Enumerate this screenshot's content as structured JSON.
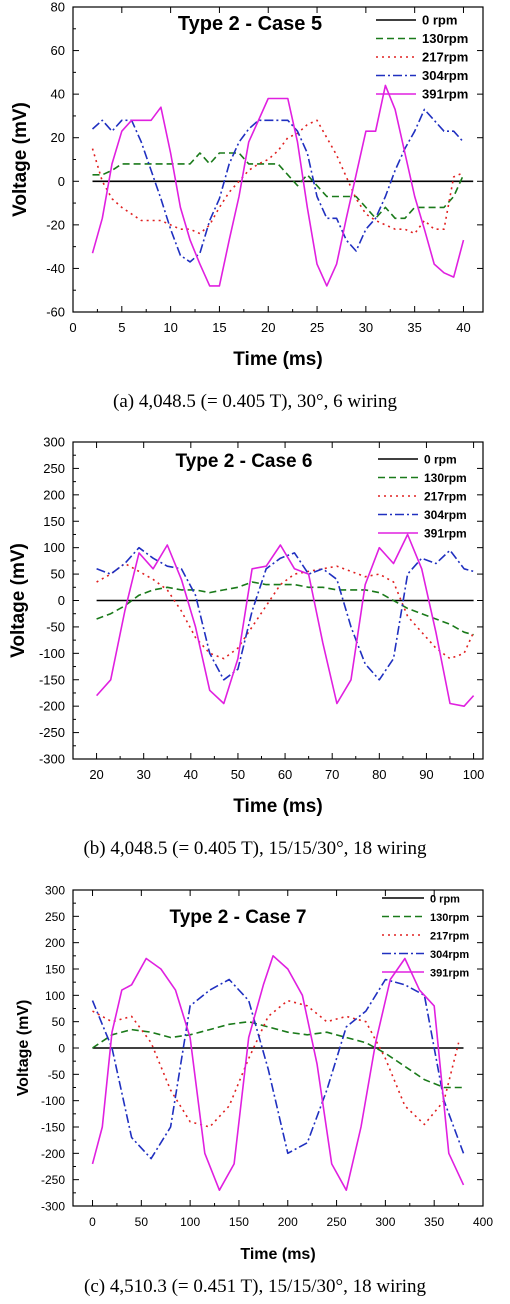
{
  "figures": [
    {
      "caption": "(a) 4,048.5 (= 0.405 T), 30°, 6 wiring"
    },
    {
      "caption": "(b) 4,048.5 (= 0.405 T), 15/15/30°, 18 wiring"
    },
    {
      "caption": "(c) 4,510.3 (= 0.451 T), 15/15/30°, 18 wiring"
    }
  ],
  "chart_data": [
    {
      "type": "line",
      "title": "Type 2 - Case 5",
      "xlabel": "Time (ms)",
      "ylabel": "Voltage (mV)",
      "xlim": [
        0,
        42
      ],
      "ylim": [
        -60,
        80
      ],
      "xticks": [
        0,
        5,
        10,
        15,
        20,
        25,
        30,
        35,
        40
      ],
      "yticks": [
        -60,
        -40,
        -20,
        0,
        20,
        40,
        60,
        80
      ],
      "legend_position": "top-right",
      "series": [
        {
          "name": "0 rpm",
          "color": "#000000",
          "style": "solid",
          "x": [
            2,
            41
          ],
          "y": [
            0,
            0
          ]
        },
        {
          "name": "130rpm",
          "color": "#1a7a1a",
          "style": "dash",
          "x": [
            2,
            3,
            4,
            5,
            6,
            7,
            8,
            9,
            10,
            11,
            12,
            13,
            14,
            15,
            16,
            17,
            18,
            19,
            20,
            21,
            22,
            23,
            24,
            25,
            26,
            27,
            28,
            29,
            30,
            31,
            32,
            33,
            34,
            35,
            36,
            37,
            38,
            39,
            40
          ],
          "y": [
            3,
            3,
            5,
            8,
            8,
            8,
            8,
            8,
            8,
            8,
            8,
            13,
            8,
            13,
            13,
            13,
            8,
            8,
            8,
            8,
            3,
            -2,
            3,
            -2,
            -7,
            -7,
            -7,
            -7,
            -12,
            -17,
            -12,
            -17,
            -17,
            -12,
            -12,
            -12,
            -12,
            -7,
            3
          ]
        },
        {
          "name": "217rpm",
          "color": "#e02020",
          "style": "dot",
          "x": [
            2,
            3,
            4,
            5,
            6,
            7,
            8,
            9,
            10,
            11,
            12,
            13,
            14,
            15,
            16,
            17,
            18,
            19,
            20,
            21,
            22,
            23,
            24,
            25,
            26,
            27,
            28,
            29,
            30,
            31,
            32,
            33,
            34,
            35,
            36,
            37,
            38,
            39,
            40
          ],
          "y": [
            15,
            0,
            -8,
            -12,
            -15,
            -18,
            -18,
            -18,
            -20,
            -22,
            -22,
            -24,
            -20,
            -12,
            -5,
            0,
            5,
            8,
            10,
            14,
            20,
            22,
            26,
            28,
            20,
            12,
            2,
            -8,
            -15,
            -18,
            -20,
            -22,
            -22,
            -24,
            -18,
            -22,
            -22,
            2,
            4
          ]
        },
        {
          "name": "304rpm",
          "color": "#2030c0",
          "style": "dashdot",
          "x": [
            2,
            3,
            4,
            5,
            6,
            7,
            8,
            9,
            10,
            11,
            12,
            13,
            14,
            15,
            16,
            17,
            18,
            19,
            20,
            21,
            22,
            23,
            24,
            25,
            26,
            27,
            28,
            29,
            30,
            31,
            32,
            33,
            34,
            35,
            36,
            37,
            38,
            39,
            40
          ],
          "y": [
            24,
            28,
            23,
            28,
            28,
            18,
            5,
            -8,
            -22,
            -34,
            -37,
            -33,
            -18,
            -8,
            8,
            18,
            24,
            28,
            28,
            28,
            28,
            23,
            13,
            -7,
            -17,
            -17,
            -27,
            -32,
            -22,
            -17,
            -7,
            5,
            15,
            23,
            33,
            28,
            23,
            23,
            18
          ]
        },
        {
          "name": "391rpm",
          "color": "#e020e0",
          "style": "solid",
          "x": [
            2,
            3,
            4,
            5,
            6,
            7,
            8,
            9,
            10,
            11,
            12,
            13,
            14,
            15,
            16,
            17,
            18,
            19,
            20,
            21,
            22,
            23,
            24,
            25,
            26,
            27,
            28,
            29,
            30,
            31,
            32,
            33,
            34,
            35,
            36,
            37,
            38,
            39,
            40
          ],
          "y": [
            -33,
            -17,
            8,
            23,
            28,
            28,
            28,
            34,
            13,
            -12,
            -27,
            -38,
            -48,
            -48,
            -27,
            -7,
            18,
            28,
            38,
            38,
            38,
            18,
            -12,
            -38,
            -48,
            -38,
            -17,
            3,
            23,
            23,
            44,
            33,
            13,
            -7,
            -22,
            -38,
            -42,
            -44,
            -27
          ]
        }
      ]
    },
    {
      "type": "line",
      "title": "Type 2 - Case 6",
      "xlabel": "Time (ms)",
      "ylabel": "Voltage (mV)",
      "xlim": [
        15,
        102
      ],
      "ylim": [
        -300,
        300
      ],
      "xticks": [
        20,
        30,
        40,
        50,
        60,
        70,
        80,
        90,
        100
      ],
      "yticks": [
        -300,
        -250,
        -200,
        -150,
        -100,
        -50,
        0,
        50,
        100,
        150,
        200,
        250,
        300
      ],
      "legend_position": "top-right",
      "series": [
        {
          "name": "0 rpm",
          "color": "#000000",
          "style": "solid",
          "x": [
            20,
            100
          ],
          "y": [
            0,
            0
          ]
        },
        {
          "name": "130rpm",
          "color": "#1a7a1a",
          "style": "dash",
          "x": [
            20,
            23,
            26,
            29,
            32,
            35,
            38,
            41,
            44,
            47,
            50,
            53,
            56,
            59,
            62,
            65,
            68,
            71,
            74,
            77,
            80,
            83,
            86,
            89,
            92,
            95,
            98,
            100
          ],
          "y": [
            -35,
            -25,
            -10,
            10,
            20,
            25,
            20,
            20,
            15,
            20,
            25,
            35,
            30,
            30,
            30,
            25,
            25,
            20,
            20,
            20,
            15,
            0,
            -15,
            -25,
            -35,
            -45,
            -60,
            -65
          ]
        },
        {
          "name": "217rpm",
          "color": "#e02020",
          "style": "dot",
          "x": [
            20,
            23,
            26,
            29,
            32,
            35,
            38,
            41,
            44,
            47,
            50,
            53,
            56,
            59,
            62,
            65,
            68,
            71,
            74,
            77,
            80,
            83,
            86,
            89,
            92,
            95,
            98,
            100
          ],
          "y": [
            35,
            50,
            70,
            55,
            40,
            20,
            -20,
            -70,
            -100,
            -110,
            -90,
            -50,
            -10,
            30,
            50,
            55,
            60,
            65,
            55,
            45,
            50,
            35,
            -30,
            -60,
            -90,
            -110,
            -100,
            -60
          ]
        },
        {
          "name": "304rpm",
          "color": "#2030c0",
          "style": "dashdot",
          "x": [
            20,
            23,
            26,
            29,
            32,
            35,
            38,
            41,
            44,
            47,
            50,
            53,
            56,
            59,
            62,
            65,
            68,
            71,
            74,
            77,
            80,
            83,
            86,
            89,
            92,
            95,
            98,
            100
          ],
          "y": [
            60,
            50,
            70,
            100,
            80,
            65,
            60,
            10,
            -100,
            -150,
            -130,
            -20,
            60,
            80,
            90,
            50,
            60,
            40,
            -50,
            -120,
            -150,
            -110,
            50,
            80,
            70,
            95,
            60,
            55
          ]
        },
        {
          "name": "391rpm",
          "color": "#e020e0",
          "style": "solid",
          "x": [
            20,
            23,
            26,
            29,
            32,
            35,
            38,
            41,
            44,
            47,
            50,
            53,
            56,
            59,
            62,
            65,
            68,
            71,
            74,
            77,
            80,
            83,
            86,
            89,
            92,
            95,
            98,
            100
          ],
          "y": [
            -180,
            -150,
            -20,
            90,
            60,
            105,
            40,
            -50,
            -170,
            -195,
            -110,
            60,
            65,
            105,
            60,
            50,
            -80,
            -195,
            -150,
            30,
            100,
            70,
            125,
            60,
            -60,
            -195,
            -200,
            -180
          ]
        }
      ]
    },
    {
      "type": "line",
      "title": "Type 2 - Case 7",
      "xlabel": "Time (ms)",
      "ylabel": "Voltage (mV)",
      "xlim": [
        -20,
        400
      ],
      "ylim": [
        -300,
        300
      ],
      "xticks": [
        0,
        50,
        100,
        150,
        200,
        250,
        300,
        350,
        400
      ],
      "yticks": [
        -300,
        -250,
        -200,
        -150,
        -100,
        -50,
        0,
        50,
        100,
        150,
        200,
        250,
        300
      ],
      "legend_position": "top-right",
      "series": [
        {
          "name": "0 rpm",
          "color": "#000000",
          "style": "solid",
          "x": [
            0,
            380
          ],
          "y": [
            0,
            0
          ]
        },
        {
          "name": "130rpm",
          "color": "#1a7a1a",
          "style": "dash",
          "x": [
            0,
            20,
            40,
            60,
            80,
            100,
            120,
            140,
            160,
            180,
            200,
            220,
            240,
            260,
            280,
            300,
            320,
            340,
            360,
            380
          ],
          "y": [
            0,
            25,
            35,
            30,
            20,
            25,
            35,
            45,
            50,
            40,
            30,
            25,
            30,
            20,
            10,
            -10,
            -35,
            -60,
            -75,
            -75
          ]
        },
        {
          "name": "217rpm",
          "color": "#e02020",
          "style": "dot",
          "x": [
            0,
            20,
            40,
            60,
            80,
            100,
            120,
            140,
            160,
            180,
            200,
            220,
            240,
            260,
            280,
            300,
            320,
            340,
            360,
            375
          ],
          "y": [
            70,
            50,
            60,
            10,
            -80,
            -140,
            -150,
            -110,
            -20,
            60,
            90,
            80,
            50,
            60,
            50,
            -20,
            -110,
            -145,
            -100,
            10
          ]
        },
        {
          "name": "304rpm",
          "color": "#2030c0",
          "style": "dashdot",
          "x": [
            0,
            20,
            40,
            60,
            80,
            100,
            120,
            140,
            160,
            180,
            200,
            220,
            240,
            260,
            280,
            300,
            320,
            340,
            360,
            380
          ],
          "y": [
            90,
            0,
            -170,
            -210,
            -150,
            80,
            110,
            130,
            90,
            -40,
            -200,
            -180,
            -80,
            40,
            70,
            130,
            120,
            100,
            -100,
            -200
          ]
        },
        {
          "name": "391rpm",
          "color": "#e020e0",
          "style": "solid",
          "x": [
            0,
            10,
            20,
            30,
            40,
            55,
            70,
            85,
            100,
            115,
            130,
            145,
            160,
            175,
            185,
            200,
            215,
            230,
            245,
            260,
            275,
            290,
            305,
            320,
            335,
            350,
            365,
            380
          ],
          "y": [
            -220,
            -150,
            30,
            110,
            120,
            170,
            150,
            110,
            20,
            -200,
            -270,
            -220,
            20,
            120,
            175,
            150,
            100,
            -30,
            -220,
            -270,
            -150,
            10,
            130,
            170,
            110,
            80,
            -200,
            -260
          ]
        }
      ]
    }
  ]
}
